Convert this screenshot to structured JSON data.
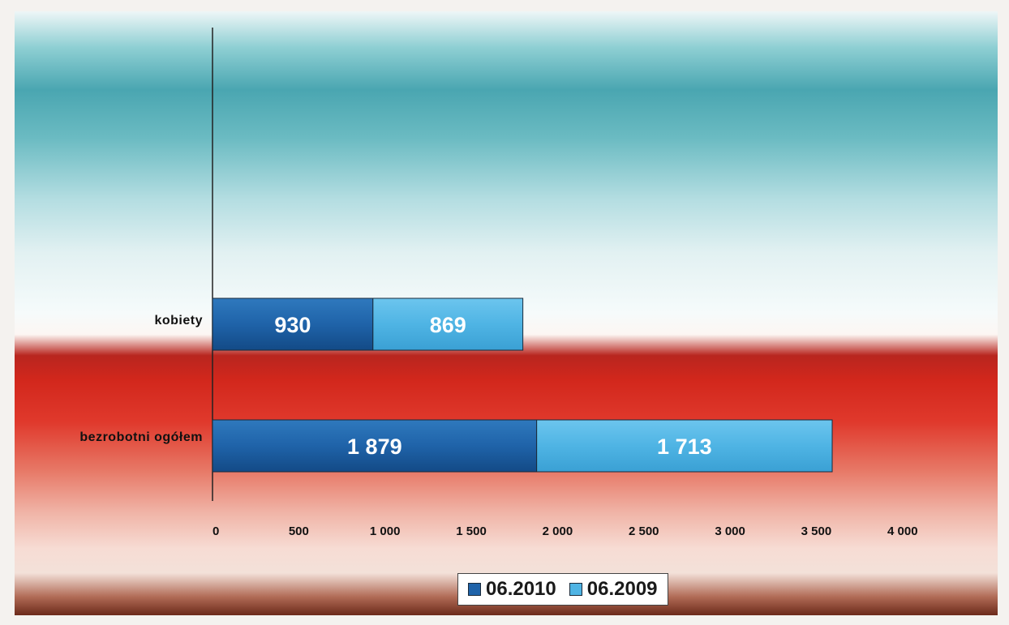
{
  "chart_data": {
    "type": "bar",
    "orientation": "horizontal",
    "stacked": true,
    "categories": [
      "kobiety",
      "bezrobotni ogółem"
    ],
    "series": [
      {
        "name": "06.2010",
        "values": [
          930,
          1879
        ],
        "labels": [
          "930",
          "1 879"
        ],
        "color": "#1f63a9"
      },
      {
        "name": "06.2009",
        "values": [
          869,
          1713
        ],
        "labels": [
          "869",
          "1 713"
        ],
        "color": "#4fb4e4"
      }
    ],
    "xlim": [
      0,
      4000
    ],
    "xticks": [
      0,
      500,
      1000,
      1500,
      2000,
      2500,
      3000,
      3500,
      4000
    ],
    "xtick_labels": [
      "0",
      "500",
      "1 000",
      "1 500",
      "2 000",
      "2 500",
      "3 000",
      "3 500",
      "4 000"
    ],
    "grid": false,
    "legend_position": "bottom"
  }
}
